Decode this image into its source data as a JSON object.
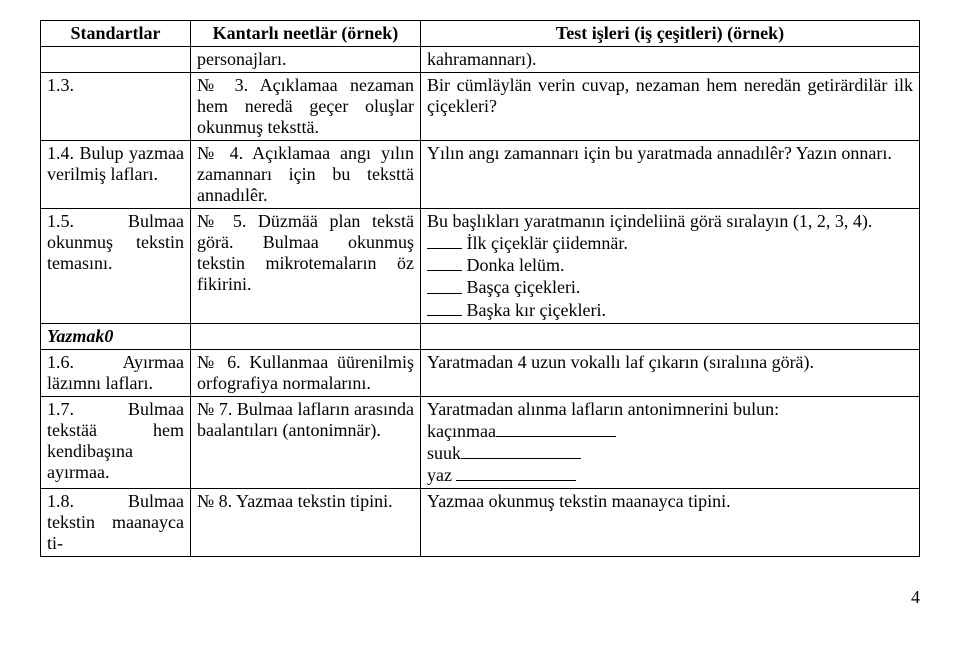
{
  "headers": {
    "col1": "Standartlar",
    "col2": "Kantarlı neetlär (örnek)",
    "col3": "Test işleri (iş çeşitleri) (örnek)"
  },
  "rows": [
    {
      "c1": "",
      "c2": "personajları.",
      "c3": "kahramannarı)."
    },
    {
      "c1": "1.3.",
      "c2": "№ 3. Açıklamaa nezaman hem neredä geçer oluşlar okunmuş teksttä.",
      "c3": "Bir cümläylän verin cuvap, nezaman hem neredän getirärdilär ilk çiçekleri?"
    },
    {
      "c1": "1.4. Bulup yazmaa verilmiş lafları.",
      "c2": "№ 4. Açıklamaa angı yılın zamannarı için bu teksttä annadılêr.",
      "c3": "Yılın angı zamannarı için bu yaratmada annadılêr? Yazın onnarı."
    },
    {
      "c1": "1.5. Bulmaa okunmuş tekstin temasını.",
      "c2": "№ 5. Düzmää plan tekstä görä. Bulmaa okunmuş tekstin mikrotemaların öz fikirini.",
      "c3_lead": "Bu başlıkları yaratmanın içindeliinä görä sıralayın (1, 2, 3, 4).",
      "c3_items": [
        "İlk çiçeklär çiidemnär.",
        "Donka lelüm.",
        "Başça çiçekleri.",
        "Başka kır çiçekleri."
      ]
    },
    {
      "c1": "Yazmak0",
      "c2": "",
      "c3": ""
    },
    {
      "c1": "1.6. Ayırmaa läzımnı lafları.",
      "c2": "№ 6. Kullanmaa üürenilmiş orfografiya normalarını.",
      "c3": "Yaratmadan 4 uzun vokallı laf çıkarın (sıralıına görä)."
    },
    {
      "c1": "1.7. Bulmaa tekstää hem kendibaşına ayırmaa.",
      "c2": "№ 7. Bulmaa lafların arasında baalantıları (antonimnär).",
      "c3_lead": "Yaratmadan alınma lafların antonimnerini bulun:",
      "c3_words": [
        "kaçınmaa",
        "suuk",
        "yaz"
      ]
    },
    {
      "c1": "1.8. Bulmaa tekstin maanayca ti-",
      "c2": "№ 8. Yazmaa tekstin tipini.",
      "c3": "Yazmaa okunmuş tekstin maanayca tipini."
    }
  ],
  "pageNumber": "4"
}
